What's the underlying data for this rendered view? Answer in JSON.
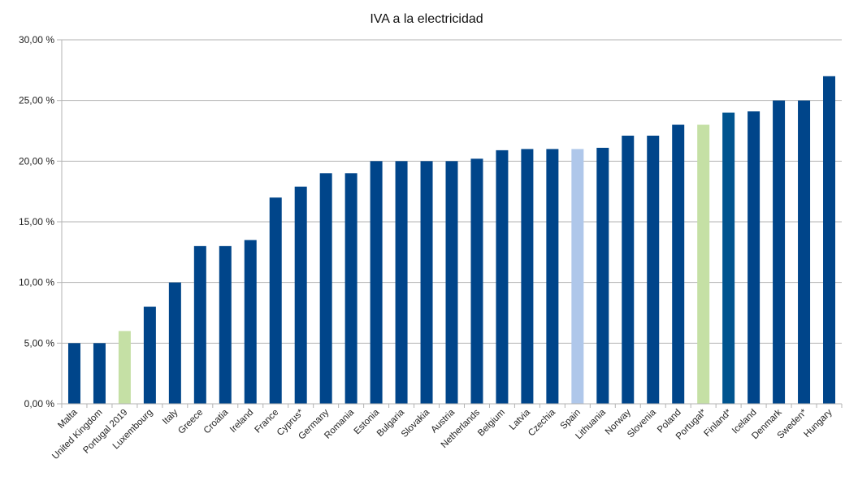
{
  "chart_data": {
    "type": "bar",
    "title": "IVA a la electricidad",
    "xlabel": "",
    "ylabel": "",
    "ylim": [
      0,
      30
    ],
    "grid": true,
    "legend": "none",
    "y_ticks": [
      {
        "value": 0,
        "label": "0,00 %"
      },
      {
        "value": 5,
        "label": "5,00 %"
      },
      {
        "value": 10,
        "label": "10,00 %"
      },
      {
        "value": 15,
        "label": "15,00 %"
      },
      {
        "value": 20,
        "label": "20,00 %"
      },
      {
        "value": 25,
        "label": "25,00 %"
      },
      {
        "value": 30,
        "label": "30,00 %"
      }
    ],
    "categories": [
      "Malta",
      "United Kingdom",
      "Portugal 2019",
      "Luxembourg",
      "Italy",
      "Greece",
      "Croatia",
      "Ireland",
      "France",
      "Cyprus*",
      "Germany",
      "Romania",
      "Estonia",
      "Bulgaria",
      "Slovakia",
      "Austria",
      "Netherlands",
      "Belgium",
      "Latvia",
      "Czechia",
      "Spain",
      "Lithuania",
      "Norway",
      "Slovenia",
      "Poland",
      "Portugal*",
      "Finland*",
      "Iceland",
      "Denmark",
      "Sweden*",
      "Hungary"
    ],
    "values": [
      5,
      5,
      6,
      8,
      10,
      13,
      13,
      13.5,
      17,
      17.9,
      19,
      19,
      20,
      20,
      20,
      20,
      20.2,
      20.9,
      21,
      21,
      21,
      21.1,
      22.1,
      22.1,
      23,
      23,
      24,
      24.1,
      25,
      25,
      27
    ],
    "colors": {
      "default": "#00458a",
      "Portugal 2019": "#c5e0a5",
      "Portugal*": "#c5e0a5",
      "Spain": "#afc7ea",
      "Finland*": "#00548f",
      "gridline": "#b3b3b3",
      "axis": "#b3b3b3"
    }
  }
}
